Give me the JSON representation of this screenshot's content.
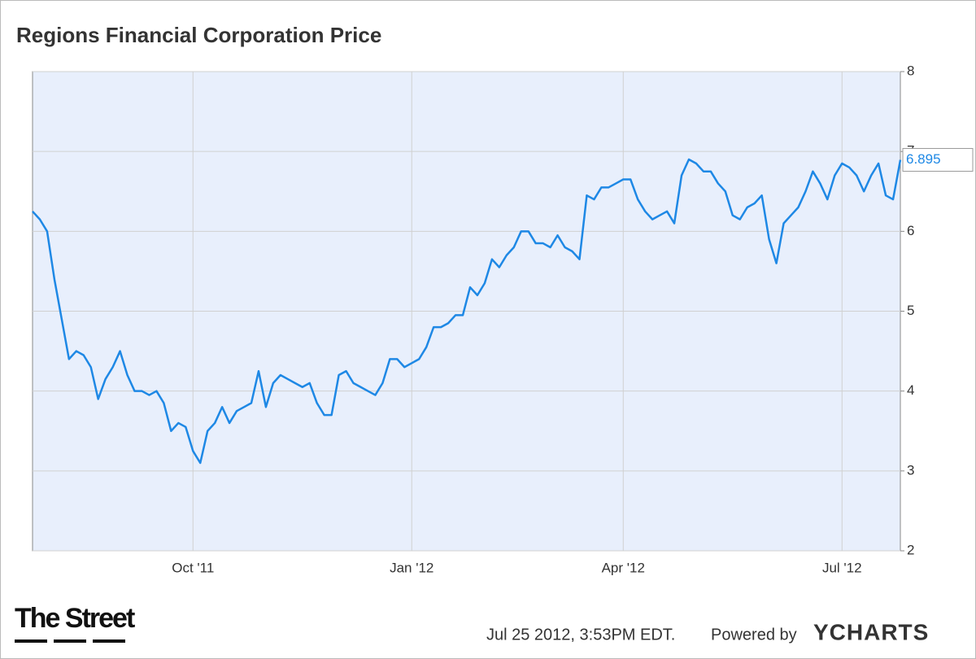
{
  "chart_data": {
    "type": "line",
    "title": "Regions Financial Corporation Price",
    "categories": [
      null,
      null,
      null,
      null,
      null,
      null,
      null,
      null,
      null,
      null,
      null,
      null,
      null,
      null,
      null,
      null,
      null,
      null,
      null,
      null,
      null,
      null,
      "Oct '11",
      null,
      null,
      null,
      null,
      null,
      null,
      null,
      null,
      null,
      null,
      null,
      null,
      null,
      null,
      null,
      null,
      null,
      null,
      null,
      null,
      null,
      null,
      null,
      null,
      null,
      null,
      null,
      null,
      null,
      "Jan '12",
      null,
      null,
      null,
      null,
      null,
      null,
      null,
      null,
      null,
      null,
      null,
      null,
      null,
      null,
      null,
      null,
      null,
      null,
      null,
      null,
      null,
      null,
      null,
      null,
      null,
      null,
      null,
      null,
      "Apr '12",
      null,
      null,
      null,
      null,
      null,
      null,
      null,
      null,
      null,
      null,
      null,
      null,
      null,
      null,
      null,
      null,
      null,
      null,
      null,
      null,
      null,
      null,
      null,
      null,
      null,
      null,
      null,
      null,
      null,
      "Jul '12",
      null,
      null,
      null,
      null,
      null,
      null,
      null,
      null
    ],
    "series": [
      {
        "color": "#1e88e5",
        "values": [
          6.25,
          6.15,
          6.0,
          5.4,
          4.9,
          4.4,
          4.5,
          4.45,
          4.3,
          3.9,
          4.15,
          4.3,
          4.5,
          4.2,
          4.0,
          4.0,
          3.95,
          4.0,
          3.85,
          3.5,
          3.6,
          3.55,
          3.25,
          3.1,
          3.5,
          3.6,
          3.8,
          3.6,
          3.75,
          3.8,
          3.85,
          4.25,
          3.8,
          4.1,
          4.2,
          4.15,
          4.1,
          4.05,
          4.1,
          3.85,
          3.7,
          3.7,
          4.2,
          4.25,
          4.1,
          4.05,
          4.0,
          3.95,
          4.1,
          4.4,
          4.4,
          4.3,
          4.35,
          4.4,
          4.55,
          4.8,
          4.8,
          4.85,
          4.95,
          4.95,
          5.3,
          5.2,
          5.35,
          5.65,
          5.55,
          5.7,
          5.8,
          6.0,
          6.0,
          5.85,
          5.85,
          5.8,
          5.95,
          5.8,
          5.75,
          5.65,
          6.45,
          6.4,
          6.55,
          6.55,
          6.6,
          6.65,
          6.65,
          6.4,
          6.25,
          6.15,
          6.2,
          6.25,
          6.1,
          6.7,
          6.9,
          6.85,
          6.75,
          6.75,
          6.6,
          6.5,
          6.2,
          6.15,
          6.3,
          6.35,
          6.45,
          5.9,
          5.6,
          6.1,
          6.2,
          6.3,
          6.5,
          6.75,
          6.6,
          6.4,
          6.7,
          6.85,
          6.8,
          6.7,
          6.5,
          6.7,
          6.85,
          6.45,
          6.4,
          6.895
        ]
      }
    ],
    "ylim": [
      2,
      8
    ],
    "yticks": [
      2,
      3,
      4,
      5,
      6,
      7,
      8
    ],
    "grid": true,
    "timestamp": "Jul 25 2012, 3:53PM EDT.",
    "powered_by": "Powered by",
    "brand": "YCHARTS",
    "logo": "The Street"
  }
}
